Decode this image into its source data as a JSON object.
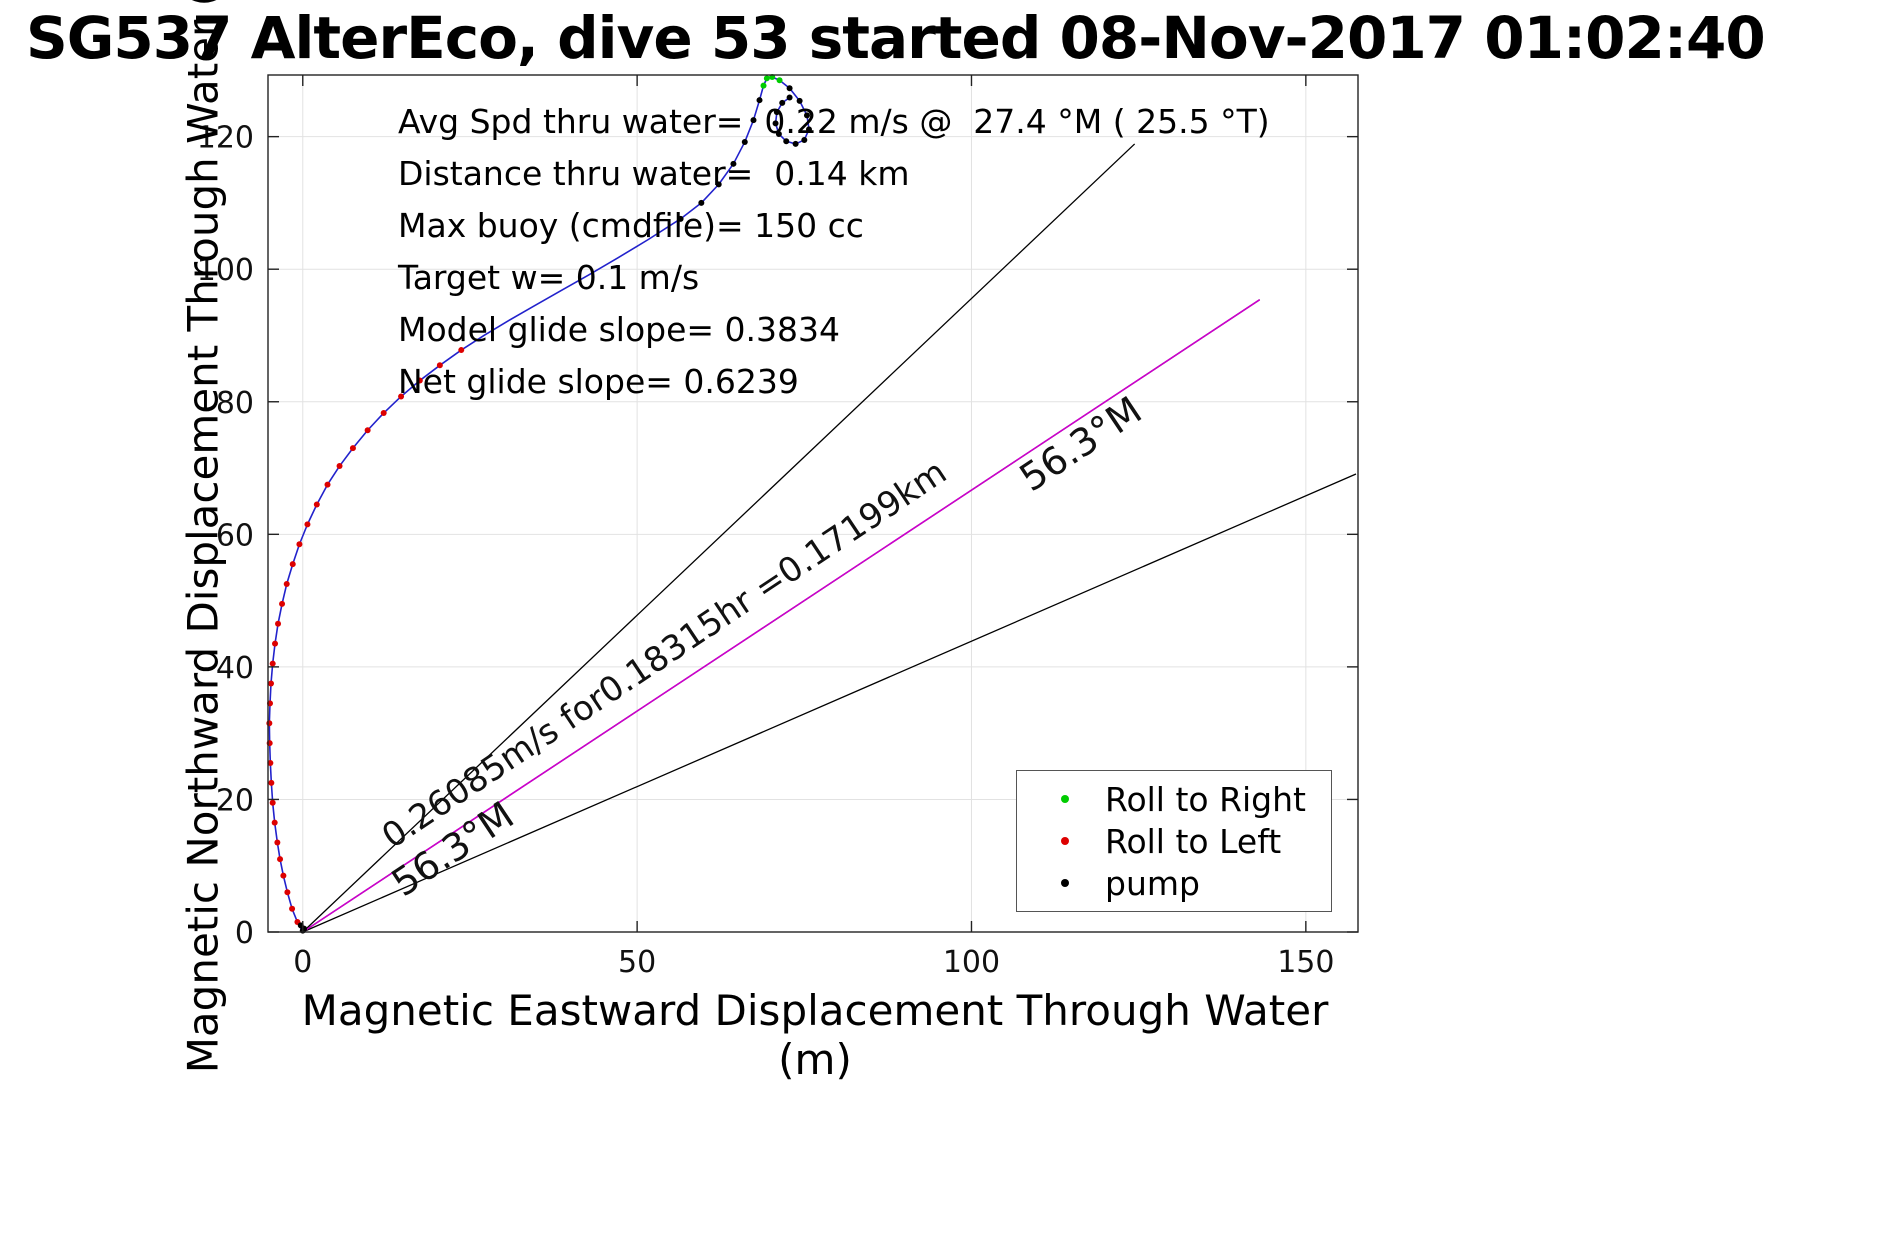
{
  "page": {
    "title": "SG537 AlterEco, dive 53 started 08-Nov-2017 01:02:40"
  },
  "chart_data": {
    "type": "line",
    "title": "SG537 AlterEco, dive 53 started 08-Nov-2017 01:02:40",
    "xlabel": "Magnetic Eastward Displacement Through Water (m)",
    "ylabel": "Magnetic Northward Displacement Through Water (m)",
    "xlim": [
      -5.2,
      157.8
    ],
    "ylim": [
      0,
      129.3
    ],
    "xticks": [
      0,
      50,
      100,
      150
    ],
    "yticks": [
      0,
      20,
      40,
      60,
      80,
      100,
      120
    ],
    "grid": true,
    "grid_color": "#e2e2e2",
    "axis_color": "#222222",
    "annotation_lines": [
      "Avg Spd thru water=  0.22 m/s @  27.4 °M ( 25.5 °T)",
      "Distance thru water=  0.14 km",
      "Max buoy (cmdfile)= 150 cc",
      "Target w= 0.1 m/s",
      "Model glide slope= 0.3834",
      "Net glide slope= 0.6239"
    ],
    "trajectory": {
      "name": "displacement-through-water-track",
      "color": "#2222cc",
      "points": [
        [
          0,
          0
        ],
        [
          -0.8,
          1.5
        ],
        [
          -1.6,
          3.5
        ],
        [
          -2.3,
          6
        ],
        [
          -2.9,
          8.5
        ],
        [
          -3.4,
          11
        ],
        [
          -3.8,
          13.5
        ],
        [
          -4.2,
          16.5
        ],
        [
          -4.5,
          19.5
        ],
        [
          -4.7,
          22.5
        ],
        [
          -4.85,
          25.5
        ],
        [
          -4.95,
          28.5
        ],
        [
          -5,
          31.5
        ],
        [
          -4.9,
          34.5
        ],
        [
          -4.75,
          37.5
        ],
        [
          -4.5,
          40.5
        ],
        [
          -4.15,
          43.5
        ],
        [
          -3.7,
          46.5
        ],
        [
          -3.1,
          49.5
        ],
        [
          -2.4,
          52.5
        ],
        [
          -1.5,
          55.5
        ],
        [
          -0.5,
          58.5
        ],
        [
          0.7,
          61.5
        ],
        [
          2.1,
          64.5
        ],
        [
          3.7,
          67.5
        ],
        [
          5.5,
          70.3
        ],
        [
          7.5,
          73
        ],
        [
          9.7,
          75.7
        ],
        [
          12.1,
          78.3
        ],
        [
          14.7,
          80.8
        ],
        [
          17.5,
          83.2
        ],
        [
          20.5,
          85.5
        ],
        [
          23.7,
          87.8
        ],
        [
          27.1,
          90
        ],
        [
          30.7,
          92.2
        ],
        [
          34.5,
          94.4
        ],
        [
          38.5,
          96.7
        ],
        [
          42.7,
          99.1
        ],
        [
          47.1,
          101.7
        ],
        [
          51.7,
          104.5
        ],
        [
          56.5,
          107.6
        ],
        [
          59.6,
          110
        ],
        [
          62.2,
          112.8
        ],
        [
          64.4,
          115.9
        ],
        [
          66.1,
          119.2
        ],
        [
          67.4,
          122.5
        ],
        [
          68.3,
          125.5
        ],
        [
          68.9,
          127.7
        ],
        [
          69.4,
          128.8
        ],
        [
          70.2,
          129
        ],
        [
          71.3,
          128.5
        ],
        [
          72.8,
          127.3
        ],
        [
          74.3,
          125.4
        ],
        [
          75.4,
          123.2
        ],
        [
          75.7,
          121.1
        ],
        [
          75,
          119.5
        ],
        [
          73.7,
          118.9
        ],
        [
          72.3,
          119.3
        ],
        [
          71.2,
          120.4
        ],
        [
          70.7,
          122
        ],
        [
          70.9,
          123.7
        ],
        [
          71.7,
          125.1
        ],
        [
          72.8,
          125.9
        ]
      ]
    },
    "reference_rays": [
      {
        "name": "bearing-minus-10-ray",
        "color": "#000000",
        "end": [
          124.4,
          118.9
        ]
      },
      {
        "name": "net-bearing-ray",
        "color": "#000000",
        "end": [
          143.1,
          95.4
        ]
      },
      {
        "name": "bearing-plus-10-ray",
        "color": "#000000",
        "end": [
          157.5,
          69.1
        ]
      }
    ],
    "dtw_vector": {
      "name": "avg-speed-vector",
      "color": "#cc00cc",
      "end": [
        143.1,
        95.4
      ]
    },
    "rotated_labels": [
      {
        "text": "0.26085m/s for0.18315hr =0.17199km",
        "x": 55,
        "y": 40.5,
        "angle_deg": -33.7,
        "font_px": 34
      },
      {
        "text": "56.3°M",
        "x": 117.4,
        "y": 72.0,
        "angle_deg": -33.7,
        "font_px": 38
      },
      {
        "text": "56.3°M",
        "x": 23.5,
        "y": 10.9,
        "angle_deg": -33.7,
        "font_px": 38
      }
    ],
    "markers": {
      "roll_right": {
        "label": "Roll to Right",
        "color": "#00cc00",
        "points": [
          [
            68.9,
            127.7
          ],
          [
            69.4,
            128.8
          ],
          [
            70.2,
            129
          ],
          [
            71.3,
            128.5
          ]
        ]
      },
      "roll_left": {
        "label": "Roll to Left",
        "color": "#dd0000",
        "points": [
          [
            -0.8,
            1.5
          ],
          [
            -1.6,
            3.5
          ],
          [
            -2.3,
            6
          ],
          [
            -2.9,
            8.5
          ],
          [
            -3.4,
            11
          ],
          [
            -3.8,
            13.5
          ],
          [
            -4.2,
            16.5
          ],
          [
            -4.5,
            19.5
          ],
          [
            -4.7,
            22.5
          ],
          [
            -4.85,
            25.5
          ],
          [
            -4.95,
            28.5
          ],
          [
            -5,
            31.5
          ],
          [
            -4.9,
            34.5
          ],
          [
            -4.75,
            37.5
          ],
          [
            -4.5,
            40.5
          ],
          [
            -4.15,
            43.5
          ],
          [
            -3.7,
            46.5
          ],
          [
            -3.1,
            49.5
          ],
          [
            -2.4,
            52.5
          ],
          [
            -1.5,
            55.5
          ],
          [
            -0.5,
            58.5
          ],
          [
            0.7,
            61.5
          ],
          [
            2.1,
            64.5
          ],
          [
            3.7,
            67.5
          ],
          [
            5.5,
            70.3
          ],
          [
            7.5,
            73
          ],
          [
            9.7,
            75.7
          ],
          [
            12.1,
            78.3
          ],
          [
            14.7,
            80.8
          ],
          [
            17.5,
            83.2
          ],
          [
            20.5,
            85.5
          ],
          [
            23.7,
            87.8
          ]
        ]
      },
      "pump": {
        "label": "pump",
        "color": "#000000",
        "points": [
          [
            0,
            0.2
          ],
          [
            0.2,
            0.5
          ],
          [
            -0.3,
            1
          ],
          [
            56.5,
            107.6
          ],
          [
            59.6,
            110
          ],
          [
            62.2,
            112.8
          ],
          [
            64.4,
            115.9
          ],
          [
            66.1,
            119.2
          ],
          [
            67.4,
            122.5
          ],
          [
            68.3,
            125.5
          ],
          [
            72.8,
            127.3
          ],
          [
            74.3,
            125.4
          ],
          [
            75.4,
            123.2
          ],
          [
            75.7,
            121.1
          ],
          [
            75,
            119.5
          ],
          [
            73.7,
            118.9
          ],
          [
            72.3,
            119.3
          ],
          [
            71.2,
            120.4
          ],
          [
            70.7,
            122
          ],
          [
            70.9,
            123.7
          ],
          [
            71.7,
            125.1
          ],
          [
            72.8,
            125.9
          ]
        ]
      }
    },
    "legend": {
      "position": "lower right",
      "items": [
        {
          "label": "Roll to Right",
          "color": "#00cc00"
        },
        {
          "label": "Roll to Left",
          "color": "#dd0000"
        },
        {
          "label": "pump",
          "color": "#000000"
        }
      ]
    }
  }
}
